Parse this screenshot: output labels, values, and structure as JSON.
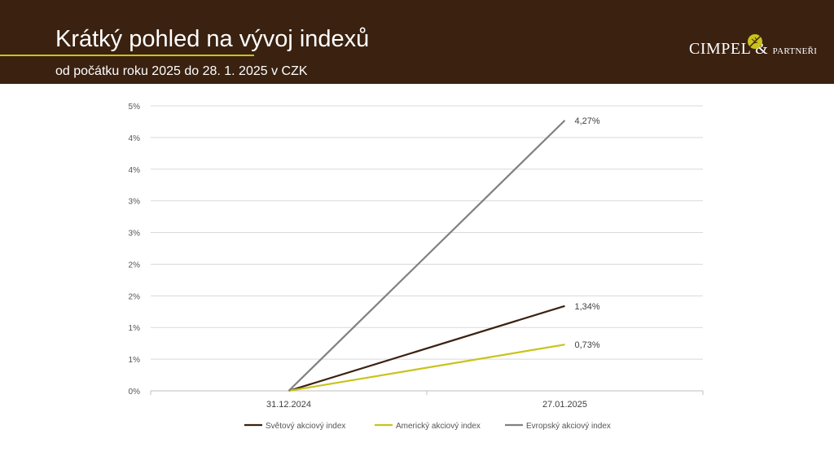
{
  "header": {
    "title": "Krátký pohled na vývoj indexů",
    "subtitle": "od počátku roku 2025 do 28. 1. 2025 v CZK",
    "logo_main": "CIMPEL",
    "logo_amp": "&",
    "logo_small": "PARTNEŘI"
  },
  "colors": {
    "header_bg": "#3a2110",
    "accent": "#c9c31a",
    "world": "#3a2110",
    "america": "#c9c31a",
    "europe": "#808080"
  },
  "chart_data": {
    "type": "line",
    "categories": [
      "31.12.2024",
      "27.01.2025"
    ],
    "y_tick_labels": [
      "0%",
      "1%",
      "1%",
      "2%",
      "2%",
      "3%",
      "3%",
      "4%",
      "4%",
      "5%"
    ],
    "ylim": [
      0,
      4.5
    ],
    "grid": true,
    "legend_position": "bottom",
    "series": [
      {
        "name": "Světový akciový index",
        "values": [
          0,
          1.34
        ],
        "label": "1,34%",
        "color": "#3a2110"
      },
      {
        "name": "Americký akciový index",
        "values": [
          0,
          0.73
        ],
        "label": "0,73%",
        "color": "#c9c31a"
      },
      {
        "name": "Evropský akciový index",
        "values": [
          0,
          4.27
        ],
        "label": "4,27%",
        "color": "#808080"
      }
    ]
  }
}
